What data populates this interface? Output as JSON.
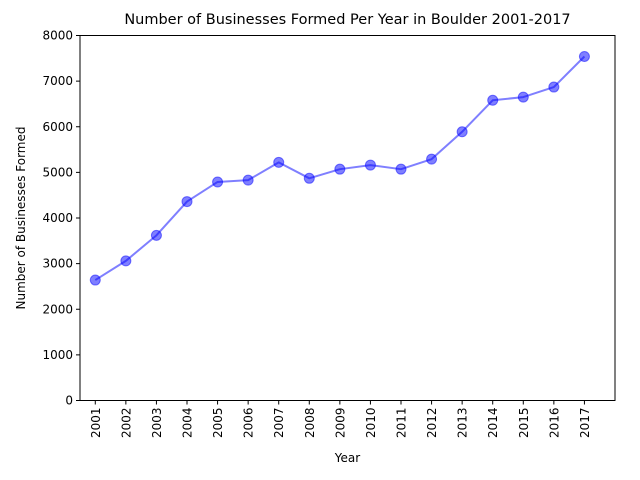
{
  "chart_data": {
    "type": "line",
    "title": "Number of Businesses Formed Per Year in Boulder 2001-2017",
    "xlabel": "Year",
    "ylabel": "Number of Businesses Formed",
    "x": [
      "2001",
      "2002",
      "2003",
      "2004",
      "2005",
      "2006",
      "2007",
      "2008",
      "2009",
      "2010",
      "2011",
      "2012",
      "2013",
      "2014",
      "2015",
      "2016",
      "2017"
    ],
    "series": [
      {
        "values": [
          2640,
          3060,
          3620,
          4360,
          4790,
          4830,
          5220,
          4870,
          5070,
          5160,
          5070,
          5290,
          5890,
          6580,
          6650,
          6870,
          7540
        ],
        "color": "#0000ff",
        "marker": "circle"
      }
    ],
    "ylim": [
      0,
      8000
    ],
    "yticks": [
      "0",
      "1000",
      "2000",
      "3000",
      "4000",
      "5000",
      "6000",
      "7000",
      "8000"
    ],
    "grid": false,
    "legend": false
  }
}
